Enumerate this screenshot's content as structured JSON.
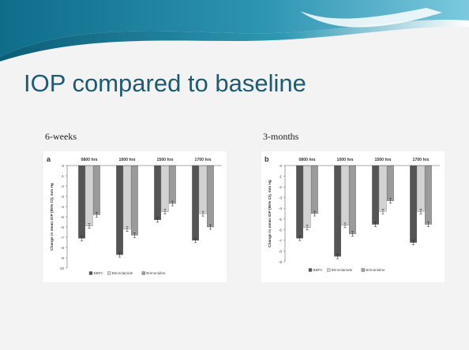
{
  "slide": {
    "title": "IOP compared to baseline",
    "label_left": "6-weeks",
    "label_right": "3-months"
  },
  "colors": {
    "title": "#1e5a74",
    "band_dark": "#0f6d8a",
    "band_light": "#52b5cf",
    "bbfc": "#555555",
    "brinzolamide": "#d2d2d2",
    "brimonidine": "#9b9b9b"
  },
  "chart_data": [
    {
      "type": "bar",
      "panel": "a",
      "categories": [
        "0800 hrs",
        "1000 hrs",
        "1500 hrs",
        "1700 hrs"
      ],
      "series": [
        {
          "name": "BBFC",
          "values": [
            -7.1,
            -8.7,
            -5.3,
            -7.3
          ]
        },
        {
          "name": "Brinzolamide",
          "values": [
            -5.9,
            -6.2,
            -4.5,
            -4.7
          ]
        },
        {
          "name": "Brimonidine",
          "values": [
            -4.8,
            -6.8,
            -3.7,
            -6.0
          ]
        }
      ],
      "ylabel": "Change in mean IOP (95% CI), mm Hg",
      "ylim": [
        -10,
        0
      ],
      "yticks": [
        "0",
        "-1",
        "-2",
        "-3",
        "-4",
        "-5",
        "-6",
        "-7",
        "-8",
        "-9",
        "-10"
      ],
      "error_bars": true,
      "legend": "bottom"
    },
    {
      "type": "bar",
      "panel": "b",
      "categories": [
        "0800 hrs",
        "1000 hrs",
        "1500 hrs",
        "1700 hrs"
      ],
      "series": [
        {
          "name": "BBFC",
          "values": [
            -6.8,
            -8.5,
            -5.5,
            -7.2
          ]
        },
        {
          "name": "Brinzolamide",
          "values": [
            -5.8,
            -5.6,
            -4.3,
            -4.3
          ]
        },
        {
          "name": "Brimonidine",
          "values": [
            -4.5,
            -6.4,
            -3.3,
            -5.5
          ]
        }
      ],
      "ylabel": "Change in mean IOP (95% CI), mm Hg",
      "ylim": [
        -9,
        0
      ],
      "yticks": [
        "0",
        "-1",
        "-2",
        "-3",
        "-4",
        "-5",
        "-6",
        "-7",
        "-8",
        "-9"
      ],
      "error_bars": true,
      "legend": "bottom"
    }
  ]
}
